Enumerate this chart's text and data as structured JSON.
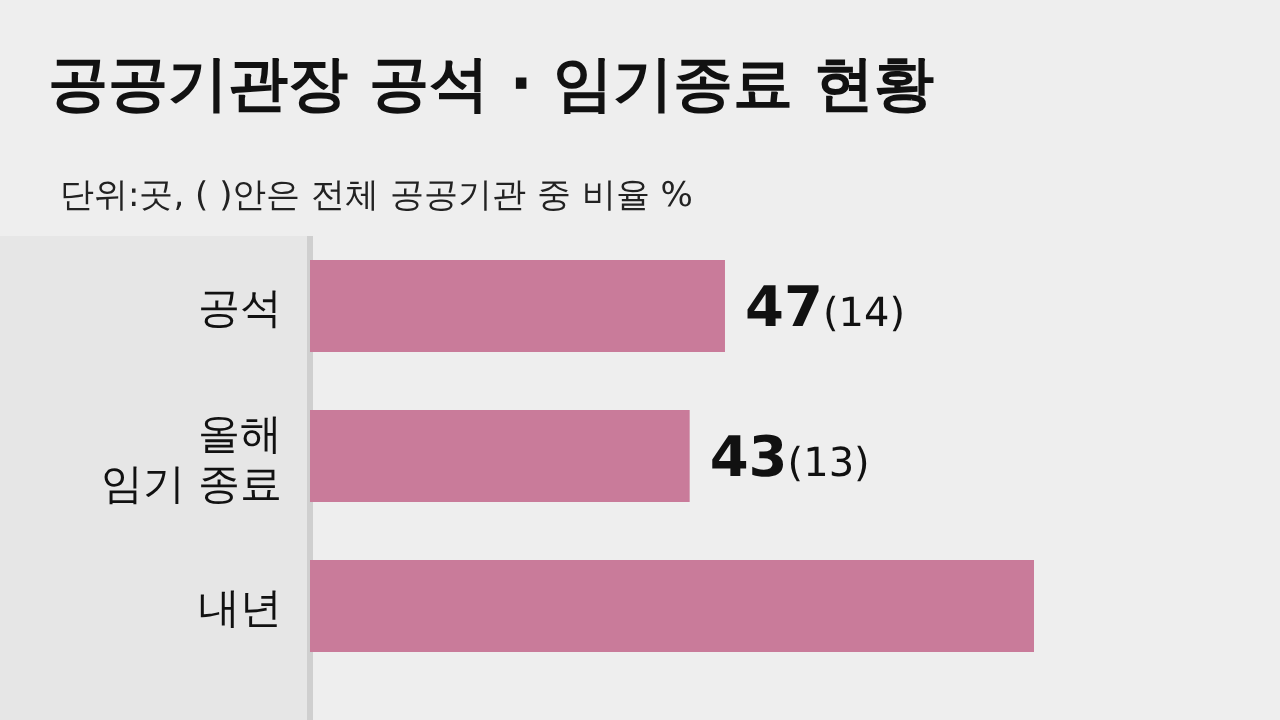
{
  "chart_data": {
    "type": "bar",
    "orientation": "horizontal",
    "title": "공공기관장 공석 · 임기종료 현황",
    "subtitle": "단위:곳, (   )안은 전체 공공기관 중 비율 %",
    "categories": [
      "공석",
      "올해\n임기 종료",
      "내년"
    ],
    "values": [
      47,
      43,
      82
    ],
    "color": "#c97b9a",
    "value_labels": [
      "47(14)",
      "43(13)",
      null
    ]
  }
}
